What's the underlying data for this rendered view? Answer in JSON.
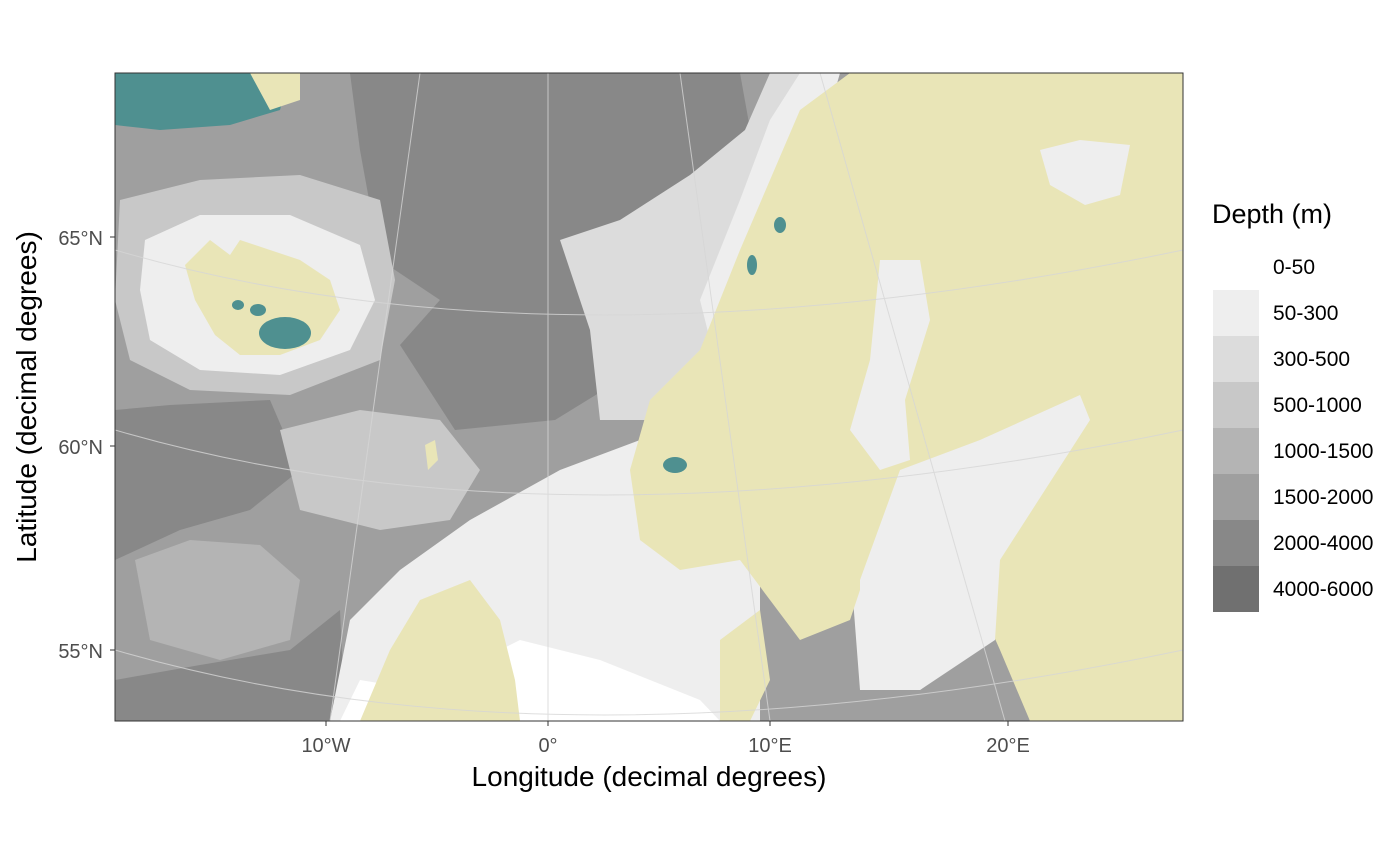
{
  "map": {
    "x_axis_title": "Longitude (decimal degrees)",
    "y_axis_title": "Latitude (decimal degrees)",
    "x_ticks": [
      "10°W",
      "0°",
      "10°E",
      "20°E"
    ],
    "y_ticks": [
      "65°N",
      "60°N",
      "55°N"
    ],
    "land_color": "#e9e5b7",
    "glacier_color": "#4f9090",
    "graticule": true
  },
  "legend": {
    "title": "Depth (m)",
    "position": "right",
    "items": [
      {
        "label": "0-50",
        "color": "#ffffff"
      },
      {
        "label": "50-300",
        "color": "#eeeeee"
      },
      {
        "label": "300-500",
        "color": "#dcdcdc"
      },
      {
        "label": "500-1000",
        "color": "#c8c8c8"
      },
      {
        "label": "1000-1500",
        "color": "#b4b4b4"
      },
      {
        "label": "1500-2000",
        "color": "#9f9f9f"
      },
      {
        "label": "2000-4000",
        "color": "#888888"
      },
      {
        "label": "4000-6000",
        "color": "#707070"
      }
    ]
  }
}
